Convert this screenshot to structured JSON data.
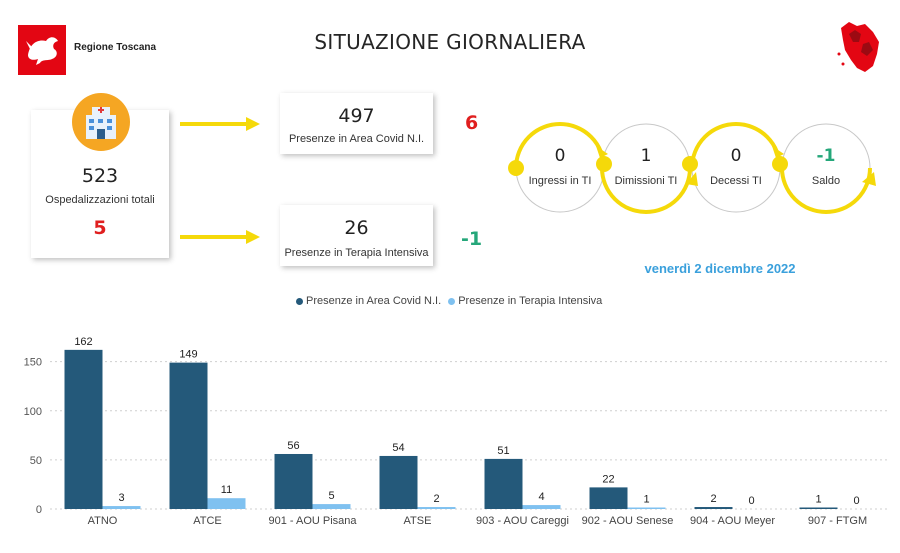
{
  "header": {
    "org_name": "Regione Toscana",
    "title": "SITUAZIONE GIORNALIERA"
  },
  "summary": {
    "total_value": "523",
    "total_label": "Ospedalizzazioni totali",
    "total_delta": "5",
    "area_value": "497",
    "area_label": "Presenze in Area Covid N.I.",
    "area_delta": "6",
    "ti_value": "26",
    "ti_label": "Presenze in Terapia Intensiva",
    "ti_delta": "-1"
  },
  "flow": {
    "items": [
      {
        "value": "0",
        "label": "Ingressi in TI"
      },
      {
        "value": "1",
        "label": "Dimissioni TI"
      },
      {
        "value": "0",
        "label": "Decessi TI"
      },
      {
        "value": "-1",
        "label": "Saldo"
      }
    ]
  },
  "date_text": "venerdì 2 dicembre 2022",
  "colors": {
    "dark_series": "#24597a",
    "light_series": "#7fc1f0",
    "arrow": "#f5d90a",
    "negative": "#e01f1f",
    "positive": "#25a77a",
    "date": "#3aa0dc"
  },
  "icons": [
    "regione-toscana-logo-icon",
    "hospital-icon",
    "tuscany-map-icon",
    "arrow-right-icon"
  ],
  "chart_data": {
    "type": "bar",
    "categories": [
      "ATNO",
      "ATCE",
      "901 - AOU Pisana",
      "ATSE",
      "903 - AOU Careggi",
      "902 - AOU Senese",
      "904 - AOU Meyer",
      "907 - FTGM"
    ],
    "series": [
      {
        "name": "Presenze in Area Covid N.I.",
        "values": [
          162,
          149,
          56,
          54,
          51,
          22,
          2,
          1
        ]
      },
      {
        "name": "Presenze in Terapia Intensiva",
        "values": [
          3,
          11,
          5,
          2,
          4,
          1,
          0,
          0
        ]
      }
    ],
    "yticks": [
      0,
      50,
      100,
      150
    ],
    "ylim": [
      0,
      170
    ],
    "grid": true,
    "legend_position": "top"
  }
}
